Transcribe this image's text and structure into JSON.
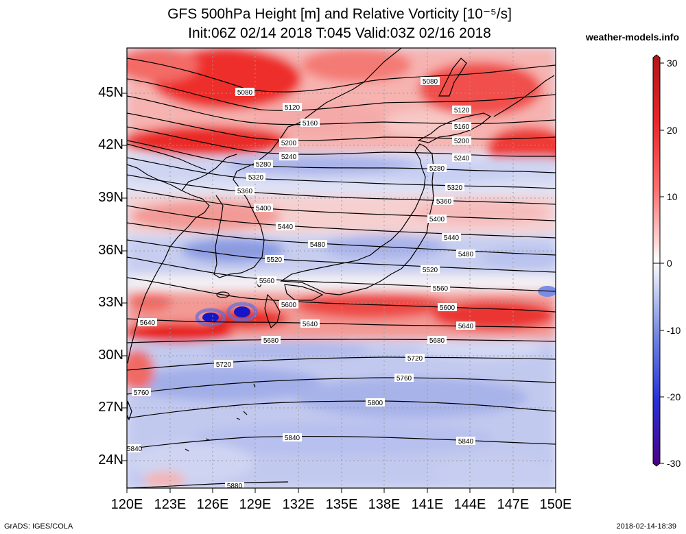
{
  "title": {
    "line1": "GFS 500hPa Height [m] and Relative Vorticity [10⁻⁵/s]",
    "line2": "Init:06Z 02/14 2018 T:045 Valid:03Z 02/16 2018"
  },
  "site": "weather-models.info",
  "lat_labels": [
    "45N",
    "42N",
    "39N",
    "36N",
    "33N",
    "30N",
    "27N",
    "24N"
  ],
  "lon_labels": [
    "120E",
    "123E",
    "126E",
    "129E",
    "132E",
    "135E",
    "138E",
    "141E",
    "144E",
    "147E",
    "150E"
  ],
  "colorbar": {
    "labels": [
      "30",
      "20",
      "10",
      "0",
      "-10",
      "-20",
      "-30"
    ],
    "colors": [
      "#b0151a",
      "#e8252a",
      "#ff7070",
      "#ffd0d0",
      "#ffffff",
      "#d0d8f4",
      "#7288e0",
      "#2830d8",
      "#1a00a0",
      "#4b0082"
    ]
  },
  "contours": [
    {
      "value": "5080",
      "color": "#000000"
    },
    {
      "value": "5120",
      "color": "#000000"
    },
    {
      "value": "5160",
      "color": "#000000"
    },
    {
      "value": "5200",
      "color": "#000000"
    },
    {
      "value": "5240",
      "color": "#000000"
    },
    {
      "value": "5280",
      "color": "#000000"
    },
    {
      "value": "5320",
      "color": "#000000"
    },
    {
      "value": "5360",
      "color": "#000000"
    },
    {
      "value": "5400",
      "color": "#000000"
    },
    {
      "value": "5440",
      "color": "#000000"
    },
    {
      "value": "5480",
      "color": "#000000"
    },
    {
      "value": "5520",
      "color": "#000000"
    },
    {
      "value": "5560",
      "color": "#000000"
    },
    {
      "value": "5600",
      "color": "#000000"
    },
    {
      "value": "5640",
      "color": "#000000"
    },
    {
      "value": "5680",
      "color": "#000000"
    },
    {
      "value": "5720",
      "color": "#000000"
    },
    {
      "value": "5760",
      "color": "#000000"
    },
    {
      "value": "5800",
      "color": "#000000"
    },
    {
      "value": "5840",
      "color": "#000000"
    },
    {
      "value": "5880",
      "color": "#000000"
    }
  ],
  "footer": {
    "left": "GrADS: IGES/COLA",
    "right": "2018-02-14-18:39"
  }
}
